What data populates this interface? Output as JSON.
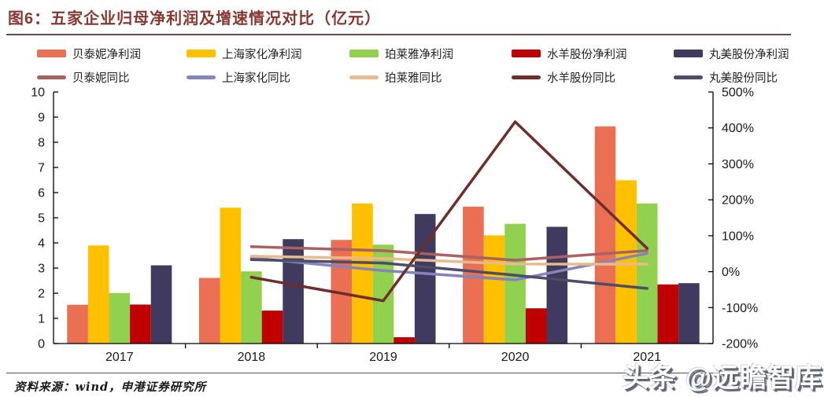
{
  "title": {
    "prefix": "图6：",
    "text": "五家企业归母净利润及增速情况对比（亿元）",
    "color": "#873831"
  },
  "source_note": "资料来源：wind，申港证券研究所",
  "watermark": "头条 @远瞻智库",
  "colors": {
    "rule_line": "#6C4A44",
    "axis_line": "#000000",
    "axis_text": "#1a1a1a",
    "background": "#ffffff"
  },
  "chart_data": {
    "type": "bar",
    "subtype": "grouped-bars-with-lines-combo",
    "categories": [
      "2017",
      "2018",
      "2019",
      "2020",
      "2021"
    ],
    "bar_series": [
      {
        "name": "贝泰妮净利润",
        "color": "#EB7053",
        "values": [
          1.54,
          2.61,
          4.12,
          5.44,
          8.63
        ]
      },
      {
        "name": "上海家化净利润",
        "color": "#FFC000",
        "values": [
          3.9,
          5.4,
          5.57,
          4.3,
          6.49
        ]
      },
      {
        "name": "珀莱雅净利润",
        "color": "#92D050",
        "values": [
          2.01,
          2.87,
          3.93,
          4.76,
          5.57
        ]
      },
      {
        "name": "水羊股份净利润",
        "color": "#C00000",
        "values": [
          1.55,
          1.31,
          0.25,
          1.4,
          2.35
        ]
      },
      {
        "name": "丸美股份净利润",
        "color": "#3F3A5E",
        "values": [
          3.11,
          4.15,
          5.15,
          4.64,
          2.4
        ]
      }
    ],
    "line_series": [
      {
        "name": "贝泰妮同比",
        "color": "#A96161",
        "x": [
          "2018",
          "2019",
          "2020",
          "2021"
        ],
        "values": [
          69.5,
          58.4,
          31.9,
          58.8
        ]
      },
      {
        "name": "上海家化同比",
        "color": "#8684BA",
        "x": [
          "2018",
          "2019",
          "2020",
          "2021"
        ],
        "values": [
          38.6,
          3.1,
          -22.8,
          50.9
        ]
      },
      {
        "name": "珀莱雅同比",
        "color": "#E9BA8C",
        "x": [
          "2018",
          "2019",
          "2020",
          "2021"
        ],
        "values": [
          43.0,
          36.7,
          21.2,
          21.0
        ]
      },
      {
        "name": "水羊股份同比",
        "color": "#6F2D2C",
        "x": [
          "2018",
          "2019",
          "2020",
          "2021"
        ],
        "values": [
          -15.5,
          -81.0,
          417.0,
          65.0
        ]
      },
      {
        "name": "丸美股份同比",
        "color": "#4D4D68",
        "x": [
          "2018",
          "2019",
          "2020",
          "2021"
        ],
        "values": [
          33.4,
          24.1,
          -9.9,
          -46.6
        ]
      }
    ],
    "left_axis": {
      "min": 0,
      "max": 10,
      "step": 1,
      "ticks": [
        "0",
        "1",
        "2",
        "3",
        "4",
        "5",
        "6",
        "7",
        "8",
        "9",
        "10"
      ]
    },
    "right_axis": {
      "min": -200,
      "max": 500,
      "step": 100,
      "ticks": [
        "-200%",
        "-100%",
        "0%",
        "100%",
        "200%",
        "300%",
        "400%",
        "500%"
      ]
    },
    "grid": false,
    "legend_position": "top"
  }
}
